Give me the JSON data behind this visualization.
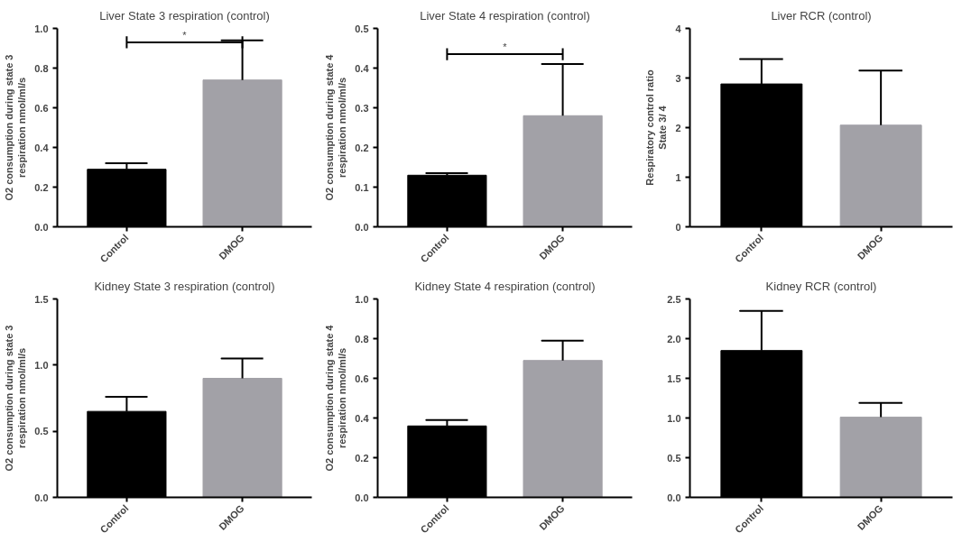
{
  "chart_data": [
    {
      "type": "bar",
      "title": "Liver State 3 respiration (control)",
      "ylabel": "O2 consumption during state 3\nrespiration nmol/ml/s",
      "categories": [
        "Control",
        "DMOG"
      ],
      "values": [
        0.29,
        0.74
      ],
      "colors": [
        "#000000",
        "#a2a1a7"
      ],
      "errors": [
        [
          0.29,
          0.32
        ],
        [
          0.74,
          0.94
        ]
      ],
      "ylim": [
        0,
        1.0
      ],
      "yticks": [
        {
          "value": 0,
          "label": "0.0"
        },
        0.2,
        0.4,
        0.6,
        0.8,
        {
          "value": 1,
          "label": "1.0"
        }
      ],
      "annotations": [
        "*"
      ],
      "grid": false
    },
    {
      "type": "bar",
      "title": "Liver State 4 respiration (control)",
      "ylabel": "O2 consumption during state 4\nrespiration nmol/ml/s",
      "categories": [
        "Control",
        "DMOG"
      ],
      "values": [
        0.13,
        0.28
      ],
      "colors": [
        "#000000",
        "#a2a1a7"
      ],
      "errors": [
        [
          0.13,
          0.135
        ],
        [
          0.28,
          0.41
        ]
      ],
      "ylim": [
        0,
        0.5
      ],
      "yticks": [
        {
          "value": 0,
          "label": "0.0"
        },
        0.1,
        0.2,
        0.3,
        0.4,
        0.5
      ],
      "annotations": [
        "*"
      ],
      "grid": false
    },
    {
      "type": "bar",
      "title": "Liver RCR (control)",
      "ylabel": "Respiratory control ratio\nState 3/ 4",
      "categories": [
        "Control",
        "DMOG"
      ],
      "values": [
        2.88,
        2.05
      ],
      "colors": [
        "#000000",
        "#a2a1a7"
      ],
      "errors": [
        [
          2.88,
          3.38
        ],
        [
          2.05,
          3.15
        ]
      ],
      "ylim": [
        0,
        4
      ],
      "yticks": [
        0,
        1,
        2,
        3,
        4
      ],
      "grid": false
    },
    {
      "type": "bar",
      "title": "Kidney State 3 respiration (control)",
      "ylabel": "O2 consumption during state 3\nrespiration nmol/ml/s",
      "categories": [
        "Control",
        "DMOG"
      ],
      "values": [
        0.65,
        0.9
      ],
      "colors": [
        "#000000",
        "#a2a1a7"
      ],
      "errors": [
        [
          0.65,
          0.76
        ],
        [
          0.9,
          1.05
        ]
      ],
      "ylim": [
        0,
        1.5
      ],
      "yticks": [
        {
          "value": 0,
          "label": "0.0"
        },
        0.5,
        {
          "value": 1,
          "label": "1.0"
        },
        1.5
      ],
      "grid": false
    },
    {
      "type": "bar",
      "title": "Kidney State 4 respiration (control)",
      "ylabel": "O2 consumption during state 4\nrespiration nmol/ml/s",
      "categories": [
        "Control",
        "DMOG"
      ],
      "values": [
        0.36,
        0.69
      ],
      "colors": [
        "#000000",
        "#a2a1a7"
      ],
      "errors": [
        [
          0.36,
          0.39
        ],
        [
          0.69,
          0.79
        ]
      ],
      "ylim": [
        0,
        1.0
      ],
      "yticks": [
        {
          "value": 0,
          "label": "0.0"
        },
        0.2,
        0.4,
        0.6,
        0.8,
        {
          "value": 1,
          "label": "1.0"
        }
      ],
      "grid": false
    },
    {
      "type": "bar",
      "title": "Kidney RCR (control)",
      "categories": [
        "Control",
        "DMOG"
      ],
      "values": [
        1.85,
        1.01
      ],
      "colors": [
        "#000000",
        "#a2a1a7"
      ],
      "errors": [
        [
          1.85,
          2.35
        ],
        [
          1.01,
          1.19
        ]
      ],
      "ylim": [
        0,
        2.5
      ],
      "yticks": [
        {
          "value": 0,
          "label": "0.0"
        },
        0.5,
        {
          "value": 1,
          "label": "1.0"
        },
        1.5,
        {
          "value": 2,
          "label": "2.0"
        },
        2.5
      ],
      "grid": false
    }
  ]
}
